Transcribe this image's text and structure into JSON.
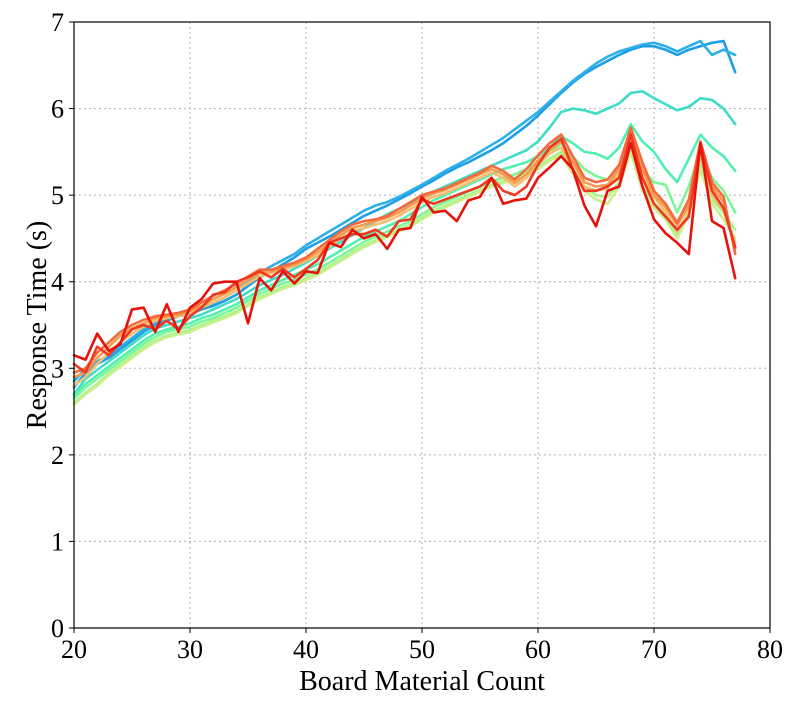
{
  "chart_data": {
    "type": "line",
    "title": "",
    "xlabel": "Board Material Count",
    "ylabel": "Response Time (s)",
    "xlim": [
      20,
      80
    ],
    "ylim": [
      0,
      7
    ],
    "xticks": [
      20,
      30,
      40,
      50,
      60,
      70,
      80
    ],
    "yticks": [
      0,
      1,
      2,
      3,
      4,
      5,
      6,
      7
    ],
    "grid": true,
    "legend": "none",
    "x": [
      20,
      21,
      22,
      23,
      24,
      25,
      26,
      27,
      28,
      29,
      30,
      31,
      32,
      33,
      34,
      35,
      36,
      37,
      38,
      39,
      40,
      41,
      42,
      43,
      44,
      45,
      46,
      47,
      48,
      49,
      50,
      51,
      52,
      53,
      54,
      55,
      56,
      57,
      58,
      59,
      60,
      61,
      62,
      63,
      64,
      65,
      66,
      67,
      68,
      69,
      70,
      71,
      72,
      73,
      74,
      75,
      76,
      77
    ],
    "series": [
      {
        "color": "#1e9ee6",
        "values": [
          2.78,
          2.95,
          3.05,
          3.12,
          3.22,
          3.32,
          3.42,
          3.5,
          3.55,
          3.6,
          3.63,
          3.68,
          3.72,
          3.78,
          3.85,
          3.95,
          4.05,
          4.12,
          4.2,
          4.28,
          4.38,
          4.45,
          4.52,
          4.6,
          4.68,
          4.76,
          4.82,
          4.88,
          4.95,
          5.02,
          5.1,
          5.17,
          5.25,
          5.32,
          5.38,
          5.45,
          5.52,
          5.6,
          5.7,
          5.8,
          5.92,
          6.05,
          6.18,
          6.3,
          6.4,
          6.48,
          6.55,
          6.62,
          6.68,
          6.72,
          6.72,
          6.68,
          6.62,
          6.68,
          6.72,
          6.76,
          6.78,
          6.42
        ]
      },
      {
        "color": "#2bb0e8",
        "values": [
          2.85,
          3.0,
          3.08,
          3.15,
          3.25,
          3.35,
          3.45,
          3.52,
          3.57,
          3.62,
          3.65,
          3.7,
          3.75,
          3.82,
          3.9,
          4.0,
          4.1,
          4.18,
          4.25,
          4.32,
          4.42,
          4.5,
          4.58,
          4.66,
          4.74,
          4.82,
          4.88,
          4.92,
          4.98,
          5.05,
          5.12,
          5.2,
          5.28,
          5.35,
          5.42,
          5.5,
          5.58,
          5.66,
          5.76,
          5.86,
          5.96,
          6.08,
          6.2,
          6.32,
          6.42,
          6.52,
          6.6,
          6.66,
          6.7,
          6.74,
          6.76,
          6.72,
          6.66,
          6.72,
          6.78,
          6.62,
          6.68,
          6.62
        ]
      },
      {
        "color": "#3fdcc8",
        "values": [
          2.7,
          2.88,
          2.98,
          3.08,
          3.18,
          3.28,
          3.38,
          3.46,
          3.5,
          3.54,
          3.58,
          3.62,
          3.68,
          3.74,
          3.8,
          3.88,
          3.96,
          4.02,
          4.08,
          4.15,
          4.22,
          4.3,
          4.38,
          4.46,
          4.54,
          4.62,
          4.7,
          4.78,
          4.84,
          4.9,
          4.98,
          5.04,
          5.1,
          5.16,
          5.22,
          5.28,
          5.34,
          5.4,
          5.46,
          5.52,
          5.62,
          5.78,
          5.96,
          6.0,
          5.98,
          5.94,
          6.0,
          6.06,
          6.18,
          6.2,
          6.12,
          6.05,
          5.98,
          6.02,
          6.12,
          6.1,
          6.0,
          5.82
        ]
      },
      {
        "color": "#52f0b0",
        "values": [
          2.68,
          2.82,
          2.92,
          3.02,
          3.12,
          3.22,
          3.32,
          3.4,
          3.45,
          3.48,
          3.52,
          3.58,
          3.62,
          3.68,
          3.74,
          3.82,
          3.9,
          3.96,
          4.02,
          4.08,
          4.14,
          4.2,
          4.28,
          4.36,
          4.44,
          4.52,
          4.58,
          4.64,
          4.7,
          4.78,
          4.86,
          4.94,
          5.0,
          5.06,
          5.12,
          5.18,
          5.24,
          5.3,
          5.34,
          5.38,
          5.45,
          5.55,
          5.68,
          5.6,
          5.5,
          5.48,
          5.42,
          5.55,
          5.82,
          5.62,
          5.5,
          5.3,
          5.15,
          5.42,
          5.7,
          5.55,
          5.45,
          5.28
        ]
      },
      {
        "color": "#7ff59a",
        "values": [
          2.65,
          2.78,
          2.88,
          2.98,
          3.08,
          3.18,
          3.28,
          3.36,
          3.42,
          3.45,
          3.48,
          3.54,
          3.58,
          3.64,
          3.7,
          3.78,
          3.86,
          3.92,
          3.98,
          4.02,
          4.08,
          4.14,
          4.22,
          4.3,
          4.38,
          4.46,
          4.52,
          4.58,
          4.64,
          4.7,
          4.78,
          4.86,
          4.92,
          4.98,
          5.04,
          5.1,
          5.16,
          5.2,
          5.24,
          5.3,
          5.38,
          5.48,
          5.6,
          5.45,
          5.3,
          5.22,
          5.18,
          5.3,
          5.7,
          5.28,
          5.15,
          5.12,
          4.8,
          5.1,
          5.5,
          5.2,
          5.05,
          4.8
        ]
      },
      {
        "color": "#a6f58a",
        "values": [
          2.6,
          2.72,
          2.82,
          2.94,
          3.04,
          3.14,
          3.24,
          3.32,
          3.38,
          3.41,
          3.44,
          3.5,
          3.55,
          3.6,
          3.66,
          3.74,
          3.82,
          3.88,
          3.94,
          3.98,
          4.04,
          4.1,
          4.18,
          4.26,
          4.34,
          4.42,
          4.48,
          4.54,
          4.6,
          4.66,
          4.74,
          4.82,
          4.88,
          4.94,
          5.0,
          5.06,
          5.12,
          5.16,
          5.2,
          5.26,
          5.32,
          5.42,
          5.5,
          5.3,
          5.1,
          5.0,
          4.98,
          5.15,
          5.55,
          5.1,
          4.9,
          4.78,
          4.55,
          4.82,
          5.35,
          4.95,
          4.8,
          4.6
        ]
      },
      {
        "color": "#c8f08a",
        "values": [
          2.58,
          2.7,
          2.8,
          2.92,
          3.02,
          3.12,
          3.22,
          3.3,
          3.36,
          3.39,
          3.42,
          3.48,
          3.53,
          3.58,
          3.64,
          3.72,
          3.8,
          3.86,
          3.92,
          3.96,
          4.02,
          4.08,
          4.16,
          4.24,
          4.32,
          4.4,
          4.46,
          4.52,
          4.58,
          4.64,
          4.72,
          4.8,
          4.86,
          4.92,
          4.98,
          5.04,
          5.1,
          5.14,
          5.18,
          5.24,
          5.3,
          5.4,
          5.46,
          5.25,
          5.05,
          4.95,
          4.9,
          5.1,
          5.5,
          5.05,
          4.85,
          4.72,
          4.5,
          4.78,
          5.3,
          4.9,
          4.72,
          4.5
        ]
      },
      {
        "color": "#f0c070",
        "values": [
          2.8,
          2.9,
          3.05,
          3.18,
          3.3,
          3.4,
          3.48,
          3.55,
          3.58,
          3.6,
          3.64,
          3.7,
          3.76,
          3.82,
          3.9,
          3.98,
          4.06,
          4.1,
          4.14,
          4.18,
          4.24,
          4.3,
          4.4,
          4.5,
          4.58,
          4.62,
          4.66,
          4.7,
          4.76,
          4.84,
          4.92,
          4.98,
          5.02,
          5.08,
          5.14,
          5.2,
          5.26,
          5.2,
          5.1,
          5.2,
          5.35,
          5.48,
          5.55,
          5.3,
          5.1,
          5.05,
          5.08,
          5.25,
          5.62,
          5.2,
          4.98,
          4.8,
          4.58,
          4.8,
          5.45,
          5.0,
          4.82,
          4.45
        ]
      },
      {
        "color": "#f79a50",
        "values": [
          2.9,
          2.95,
          3.12,
          3.25,
          3.38,
          3.46,
          3.52,
          3.58,
          3.6,
          3.62,
          3.66,
          3.72,
          3.8,
          3.86,
          3.94,
          4.02,
          4.1,
          4.12,
          4.16,
          4.2,
          4.26,
          4.34,
          4.44,
          4.54,
          4.62,
          4.66,
          4.7,
          4.74,
          4.8,
          4.88,
          4.96,
          5.02,
          5.06,
          5.12,
          5.18,
          5.24,
          5.3,
          5.24,
          5.14,
          5.24,
          5.4,
          5.52,
          5.62,
          5.38,
          5.15,
          5.1,
          5.12,
          5.3,
          5.72,
          5.3,
          5.0,
          4.86,
          4.65,
          4.88,
          5.55,
          5.1,
          4.92,
          4.38
        ]
      },
      {
        "color": "#f46a3a",
        "values": [
          2.95,
          3.0,
          3.18,
          3.3,
          3.42,
          3.5,
          3.56,
          3.6,
          3.62,
          3.64,
          3.68,
          3.76,
          3.84,
          3.9,
          3.98,
          4.06,
          4.14,
          4.14,
          4.18,
          4.22,
          4.28,
          4.38,
          4.48,
          4.58,
          4.66,
          4.7,
          4.72,
          4.76,
          4.84,
          4.92,
          5.0,
          5.04,
          5.08,
          5.14,
          5.2,
          5.26,
          5.34,
          5.28,
          5.18,
          5.3,
          5.46,
          5.6,
          5.7,
          5.45,
          5.2,
          5.15,
          5.18,
          5.35,
          5.78,
          5.38,
          5.05,
          4.9,
          4.68,
          4.95,
          5.62,
          5.15,
          4.98,
          4.32
        ]
      },
      {
        "color": "#ee3a22",
        "values": [
          3.05,
          2.95,
          3.25,
          3.15,
          3.3,
          3.45,
          3.5,
          3.45,
          3.55,
          3.45,
          3.6,
          3.7,
          3.85,
          3.88,
          4.0,
          4.05,
          4.12,
          4.05,
          4.15,
          4.05,
          4.15,
          4.25,
          4.45,
          4.5,
          4.55,
          4.55,
          4.6,
          4.52,
          4.7,
          4.72,
          4.95,
          4.9,
          4.95,
          5.0,
          5.05,
          5.1,
          5.2,
          5.05,
          5.0,
          5.1,
          5.35,
          5.55,
          5.65,
          5.3,
          5.05,
          5.05,
          5.1,
          5.2,
          5.7,
          5.2,
          4.9,
          4.75,
          4.6,
          4.75,
          5.6,
          5.05,
          4.85,
          4.4
        ]
      },
      {
        "color": "#e8120c",
        "values": [
          3.15,
          3.1,
          3.4,
          3.2,
          3.28,
          3.68,
          3.7,
          3.42,
          3.74,
          3.42,
          3.7,
          3.8,
          3.98,
          4.0,
          4.0,
          3.52,
          4.04,
          3.9,
          4.12,
          3.98,
          4.12,
          4.1,
          4.45,
          4.4,
          4.6,
          4.5,
          4.55,
          4.38,
          4.6,
          4.62,
          4.98,
          4.8,
          4.82,
          4.7,
          4.94,
          4.98,
          5.2,
          4.9,
          4.94,
          4.96,
          5.2,
          5.32,
          5.45,
          5.3,
          4.88,
          4.64,
          5.05,
          5.1,
          5.6,
          5.1,
          4.72,
          4.56,
          4.45,
          4.32,
          5.6,
          4.7,
          4.62,
          4.04
        ]
      }
    ]
  }
}
